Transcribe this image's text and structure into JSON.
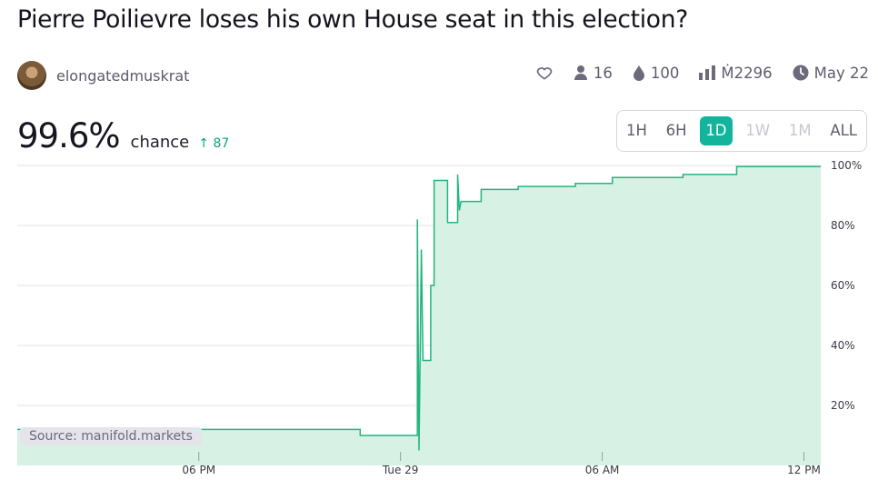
{
  "title": "Pierre Poilievre loses his own House seat in this election?",
  "author": {
    "name": "elongatedmuskrat"
  },
  "stats": {
    "traders": "16",
    "liquidity": "100",
    "volume": "Ṁ2296",
    "close_date": "May 22"
  },
  "icons": {
    "like": "heart-icon",
    "traders": "user-icon",
    "liquidity": "droplet-icon",
    "volume": "bar-chart-icon",
    "close": "clock-icon"
  },
  "probability": {
    "value": "99.6%",
    "label": "chance",
    "change": "↑ 87"
  },
  "time_ranges": [
    {
      "label": "1H",
      "state": "normal"
    },
    {
      "label": "6H",
      "state": "normal"
    },
    {
      "label": "1D",
      "state": "active"
    },
    {
      "label": "1W",
      "state": "disabled"
    },
    {
      "label": "1M",
      "state": "disabled"
    },
    {
      "label": "ALL",
      "state": "normal"
    }
  ],
  "source": "Source: manifold.markets",
  "colors": {
    "accent": "#12b59b",
    "line": "#24b47e",
    "fill": "#d7f1e4",
    "grid": "#e3e3e9"
  },
  "chart_data": {
    "type": "area",
    "title": "",
    "xlabel": "",
    "ylabel": "",
    "y_ticks": [
      "20%",
      "40%",
      "60%",
      "80%",
      "100%"
    ],
    "x_ticks": [
      "06 PM",
      "Tue 29",
      "06 AM",
      "12 PM"
    ],
    "x_tick_hours": [
      18,
      24,
      30,
      36
    ],
    "x_range_hours": [
      12.6,
      36.5
    ],
    "ylim": [
      0,
      100
    ],
    "grid": true,
    "series": [
      {
        "points": [
          [
            12.6,
            12
          ],
          [
            22.8,
            12
          ],
          [
            22.8,
            10
          ],
          [
            24.5,
            10
          ],
          [
            24.5,
            82
          ],
          [
            24.55,
            5
          ],
          [
            24.62,
            72
          ],
          [
            24.67,
            35
          ],
          [
            24.9,
            35
          ],
          [
            24.9,
            60
          ],
          [
            25.0,
            60
          ],
          [
            25.0,
            95
          ],
          [
            25.4,
            95
          ],
          [
            25.4,
            81
          ],
          [
            25.7,
            81
          ],
          [
            25.7,
            97
          ],
          [
            25.75,
            85
          ],
          [
            25.8,
            88
          ],
          [
            26.4,
            88
          ],
          [
            26.4,
            92
          ],
          [
            27.5,
            92
          ],
          [
            27.5,
            93
          ],
          [
            29.2,
            93
          ],
          [
            29.2,
            94
          ],
          [
            30.3,
            94
          ],
          [
            30.3,
            96
          ],
          [
            32.4,
            96
          ],
          [
            32.4,
            97
          ],
          [
            34.0,
            97
          ],
          [
            34.0,
            99.6
          ],
          [
            36.5,
            99.6
          ]
        ]
      }
    ]
  }
}
